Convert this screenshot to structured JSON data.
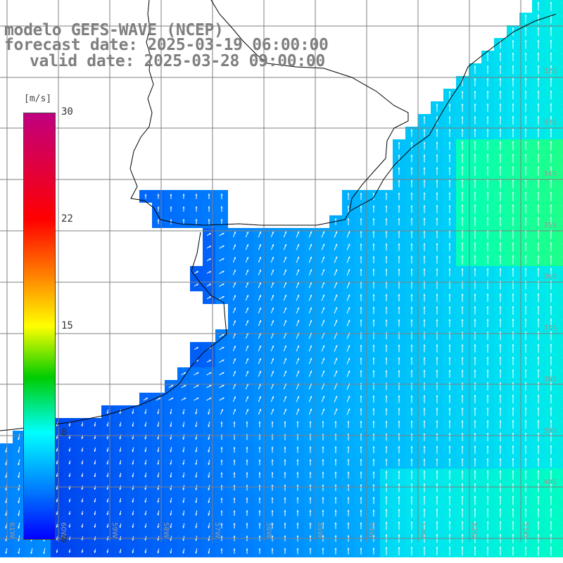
{
  "title": {
    "line1": "modelo GEFS-WAVE (NCEP)",
    "line2": "forecast date: 2025-03-19 06:00:00",
    "line3": "valid date: 2025-03-28 09:00:00"
  },
  "colorbar": {
    "unit": "[m/s]",
    "ticks": [
      "30",
      "22",
      "15",
      "8",
      "0"
    ],
    "colors": [
      "#c00080",
      "#ff0000",
      "#ff8000",
      "#ffff00",
      "#00cc00",
      "#00ffff",
      "#0080ff",
      "#0000ff"
    ]
  },
  "lat_labels": [
    "32S",
    "33S",
    "34S",
    "35S",
    "36S",
    "37S",
    "38S",
    "39S",
    "40S"
  ],
  "lon_labels": [
    "61W",
    "60W",
    "59W",
    "58W",
    "57W",
    "56W",
    "55W",
    "54W",
    "53W",
    "52W",
    "51W"
  ],
  "colors": {
    "land": "#ffffff",
    "grid": "#7f7f7f",
    "coast": "#000000",
    "arrow": "#ffffff"
  }
}
